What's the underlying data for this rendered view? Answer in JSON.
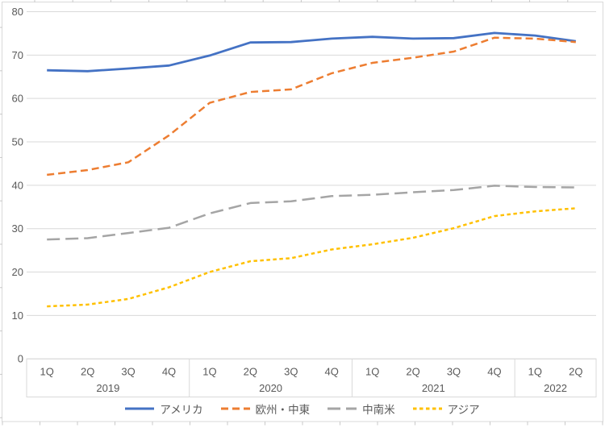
{
  "chart_data": {
    "type": "line",
    "title": "",
    "x_categories": [
      "1Q",
      "2Q",
      "3Q",
      "4Q",
      "1Q",
      "2Q",
      "3Q",
      "4Q",
      "1Q",
      "2Q",
      "3Q",
      "4Q",
      "1Q",
      "2Q"
    ],
    "x_groups": [
      {
        "label": "2019",
        "count": 4
      },
      {
        "label": "2020",
        "count": 4
      },
      {
        "label": "2021",
        "count": 4
      },
      {
        "label": "2022",
        "count": 2
      }
    ],
    "ylim": [
      0,
      80
    ],
    "y_ticks": [
      0,
      10,
      20,
      30,
      40,
      50,
      60,
      70,
      80
    ],
    "grid": true,
    "legend_position": "bottom",
    "series": [
      {
        "id": "america",
        "name": "アメリカ",
        "color": "#4472C4",
        "dash": "solid",
        "values": [
          66.5,
          66.3,
          66.9,
          67.6,
          69.9,
          72.9,
          73.0,
          73.8,
          74.2,
          73.8,
          73.9,
          75.1,
          74.5,
          73.2
        ]
      },
      {
        "id": "europe-middle-east",
        "name": "欧州・中東",
        "color": "#ED7D31",
        "dash": "dash",
        "values": [
          42.4,
          43.5,
          45.3,
          51.5,
          59.0,
          61.5,
          62.1,
          65.8,
          68.2,
          69.4,
          70.8,
          74.0,
          73.8,
          73.0
        ]
      },
      {
        "id": "latin-america",
        "name": "中南米",
        "color": "#A5A5A5",
        "dash": "long-dash",
        "values": [
          27.5,
          27.8,
          29.0,
          30.2,
          33.5,
          35.9,
          36.3,
          37.5,
          37.8,
          38.4,
          38.9,
          39.9,
          39.6,
          39.5
        ]
      },
      {
        "id": "asia",
        "name": "アジア",
        "color": "#FFC000",
        "dash": "short-dash",
        "values": [
          12.1,
          12.5,
          13.8,
          16.5,
          20.0,
          22.5,
          23.2,
          25.2,
          26.4,
          27.9,
          30.1,
          32.9,
          34.0,
          34.7
        ]
      }
    ]
  },
  "colors": {
    "grid": "#D9D9D9",
    "axis_box": "#D9D9D9",
    "frame": "#D9D9D9",
    "frame_tick": "#C9C9C9",
    "axis_text": "#595959"
  }
}
